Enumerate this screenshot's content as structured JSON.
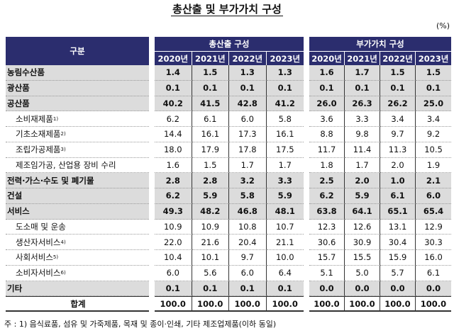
{
  "title": "총산출 및 부가가치 구성",
  "unit": "(%)",
  "header": {
    "category": "구분",
    "group1": "총산출 구성",
    "group2": "부가가치 구성",
    "years": [
      "2020년",
      "2021년",
      "2022년",
      "2023년"
    ]
  },
  "colors": {
    "header_bg": "#2b2d6e",
    "highlight_row_bg": "#dcdcdc"
  },
  "rows": [
    {
      "label": "농림수산품",
      "sup": "",
      "type": "bold",
      "output": [
        "1.4",
        "1.5",
        "1.3",
        "1.3"
      ],
      "value_added": [
        "1.6",
        "1.7",
        "1.5",
        "1.5"
      ]
    },
    {
      "label": "광산품",
      "sup": "",
      "type": "bold",
      "output": [
        "0.1",
        "0.1",
        "0.1",
        "0.1"
      ],
      "value_added": [
        "0.1",
        "0.1",
        "0.1",
        "0.1"
      ]
    },
    {
      "label": "공산품",
      "sup": "",
      "type": "bold",
      "output": [
        "40.2",
        "41.5",
        "42.8",
        "41.2"
      ],
      "value_added": [
        "26.0",
        "26.3",
        "26.2",
        "25.0"
      ]
    },
    {
      "label": "소비재제품",
      "sup": "1)",
      "type": "sub",
      "output": [
        "6.2",
        "6.1",
        "6.0",
        "5.8"
      ],
      "value_added": [
        "3.6",
        "3.3",
        "3.4",
        "3.4"
      ]
    },
    {
      "label": "기초소재제품",
      "sup": "2)",
      "type": "sub",
      "output": [
        "14.4",
        "16.1",
        "17.3",
        "16.1"
      ],
      "value_added": [
        "8.8",
        "9.8",
        "9.7",
        "9.2"
      ]
    },
    {
      "label": "조립가공제품",
      "sup": "3)",
      "type": "sub",
      "output": [
        "18.0",
        "17.9",
        "17.8",
        "17.5"
      ],
      "value_added": [
        "11.7",
        "11.4",
        "11.3",
        "10.5"
      ]
    },
    {
      "label": "제조임가공, 산업용 장비 수리",
      "sup": "",
      "type": "sub",
      "output": [
        "1.6",
        "1.5",
        "1.7",
        "1.7"
      ],
      "value_added": [
        "1.8",
        "1.7",
        "2.0",
        "1.9"
      ]
    },
    {
      "label": "전력·가스·수도 및 폐기물",
      "sup": "",
      "type": "bold",
      "output": [
        "2.8",
        "2.8",
        "3.2",
        "3.3"
      ],
      "value_added": [
        "2.5",
        "2.0",
        "1.0",
        "2.1"
      ]
    },
    {
      "label": "건설",
      "sup": "",
      "type": "bold",
      "output": [
        "6.2",
        "5.9",
        "5.8",
        "5.9"
      ],
      "value_added": [
        "6.2",
        "5.9",
        "6.1",
        "6.0"
      ]
    },
    {
      "label": "서비스",
      "sup": "",
      "type": "bold",
      "output": [
        "49.3",
        "48.2",
        "46.8",
        "48.1"
      ],
      "value_added": [
        "63.8",
        "64.1",
        "65.1",
        "65.4"
      ]
    },
    {
      "label": "도소매 및 운송",
      "sup": "",
      "type": "sub",
      "output": [
        "10.9",
        "10.9",
        "10.8",
        "10.7"
      ],
      "value_added": [
        "12.3",
        "12.6",
        "13.1",
        "12.9"
      ]
    },
    {
      "label": "생산자서비스",
      "sup": "4)",
      "type": "sub",
      "output": [
        "22.0",
        "21.6",
        "20.4",
        "21.1"
      ],
      "value_added": [
        "30.6",
        "30.9",
        "30.4",
        "30.3"
      ]
    },
    {
      "label": "사회서비스",
      "sup": "5)",
      "type": "sub",
      "output": [
        "10.4",
        "10.1",
        "9.7",
        "10.0"
      ],
      "value_added": [
        "15.7",
        "15.5",
        "15.9",
        "16.0"
      ]
    },
    {
      "label": "소비자서비스",
      "sup": "6)",
      "type": "sub",
      "output": [
        "6.0",
        "5.6",
        "6.0",
        "6.4"
      ],
      "value_added": [
        "5.1",
        "5.0",
        "5.7",
        "6.1"
      ]
    },
    {
      "label": "기타",
      "sup": "",
      "type": "bold",
      "output": [
        "0.1",
        "0.1",
        "0.1",
        "0.1"
      ],
      "value_added": [
        "0.0",
        "0.0",
        "0.0",
        "0.0"
      ]
    },
    {
      "label": "합계",
      "sup": "",
      "type": "total",
      "output": [
        "100.0",
        "100.0",
        "100.0",
        "100.0"
      ],
      "value_added": [
        "100.0",
        "100.0",
        "100.0",
        "100.0"
      ]
    }
  ],
  "footnote": "주 : 1) 음식료품, 섬유 및 가죽제품, 목재 및 종이·인쇄, 기타 제조업제품(이하 동일)"
}
